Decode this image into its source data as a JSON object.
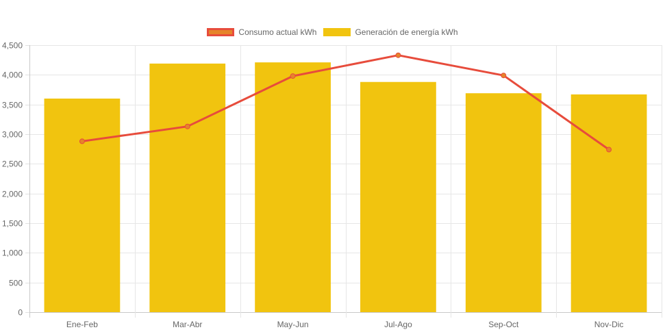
{
  "chart_data": {
    "type": "bar",
    "categories": [
      "Ene-Feb",
      "Mar-Abr",
      "May-Jun",
      "Jul-Ago",
      "Sep-Oct",
      "Nov-Dic"
    ],
    "series": [
      {
        "name": "Consumo actual kWh",
        "type": "line",
        "values": [
          2880,
          3130,
          3980,
          4330,
          3990,
          2740
        ],
        "color": "#e74c3c",
        "fill": "#e6842a"
      },
      {
        "name": "Generación de energía kWh",
        "type": "bar",
        "values": [
          3600,
          4190,
          4210,
          3880,
          3690,
          3670
        ],
        "color": "#f1c40f"
      }
    ],
    "ylim": [
      0,
      4500
    ],
    "yticks": [
      "0",
      "500",
      "1,000",
      "1,500",
      "2,000",
      "2,500",
      "3,000",
      "3,500",
      "4,000",
      "4,500"
    ],
    "ytick_values": [
      0,
      500,
      1000,
      1500,
      2000,
      2500,
      3000,
      3500,
      4000,
      4500
    ],
    "grid": true,
    "legend_position": "top"
  }
}
